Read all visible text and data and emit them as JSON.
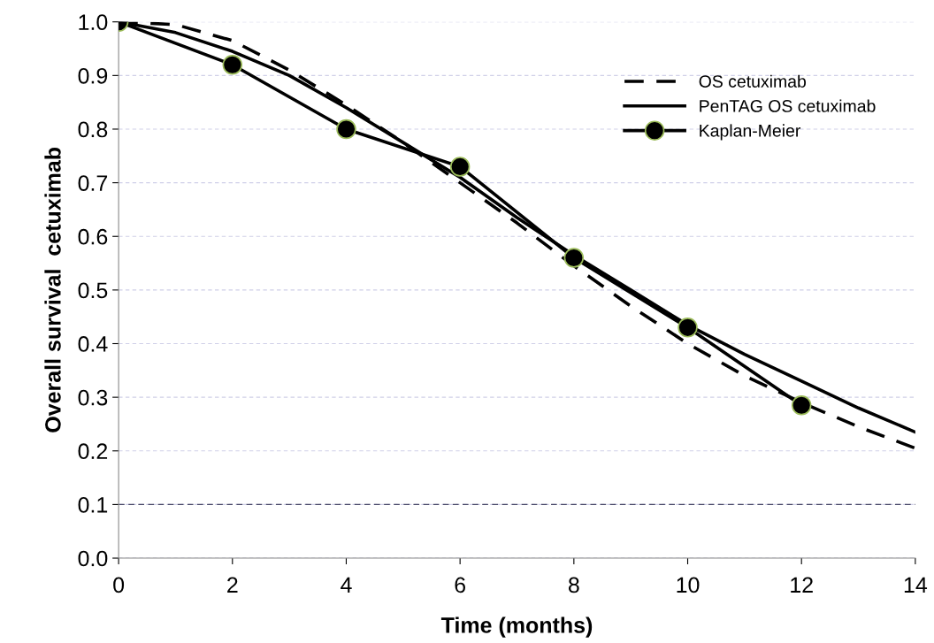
{
  "chart_data": {
    "type": "line",
    "xlabel": "Time (months)",
    "ylabel": "Overall survival  cetuximab",
    "xlim": [
      0,
      14
    ],
    "xticks": [
      0,
      2,
      4,
      6,
      8,
      10,
      12,
      14
    ],
    "ylim": [
      0,
      1
    ],
    "yticks": [
      {
        "value": 0,
        "label": "0.0"
      },
      {
        "value": 0.1,
        "label": "0.1"
      },
      {
        "value": 0.2,
        "label": "0.2"
      },
      {
        "value": 0.3,
        "label": "0.3"
      },
      {
        "value": 0.4,
        "label": "0.4"
      },
      {
        "value": 0.5,
        "label": "0.5"
      },
      {
        "value": 0.6,
        "label": "0.6"
      },
      {
        "value": 0.7,
        "label": "0.7"
      },
      {
        "value": 0.8,
        "label": "0.8"
      },
      {
        "value": 0.9,
        "label": "0.9"
      },
      {
        "value": 1,
        "label": "1.0"
      }
    ],
    "grid": "y",
    "legend": "top right",
    "ref_lines": [
      {
        "axis": "y",
        "value": 0.1,
        "color": "#4a4a6a",
        "line_style": "dashed"
      }
    ],
    "series": [
      {
        "name": "OS cetuximab",
        "color": "#000000",
        "line_style": "dashed",
        "marker": "none",
        "x": [
          0,
          1,
          2,
          3,
          4,
          5,
          6,
          7,
          8,
          9,
          10,
          11,
          12,
          13,
          14
        ],
        "values": [
          1,
          0.995,
          0.965,
          0.91,
          0.845,
          0.775,
          0.7,
          0.625,
          0.545,
          0.47,
          0.4,
          0.34,
          0.29,
          0.245,
          0.205
        ]
      },
      {
        "name": "PenTAG OS cetuximab",
        "color": "#000000",
        "line_style": "solid",
        "marker": "none",
        "x": [
          0,
          1,
          2,
          3,
          4,
          5,
          6,
          7,
          8,
          9,
          10,
          11,
          12,
          13,
          14
        ],
        "values": [
          1,
          0.98,
          0.945,
          0.9,
          0.84,
          0.775,
          0.71,
          0.635,
          0.565,
          0.5,
          0.435,
          0.38,
          0.33,
          0.28,
          0.235
        ]
      },
      {
        "name": "Kaplan-Meier",
        "color": "#000000",
        "line_style": "solid",
        "marker": "circle",
        "x": [
          0,
          2,
          4,
          6,
          8,
          10,
          12
        ],
        "values": [
          1,
          0.92,
          0.8,
          0.73,
          0.56,
          0.43,
          0.285
        ]
      }
    ]
  }
}
